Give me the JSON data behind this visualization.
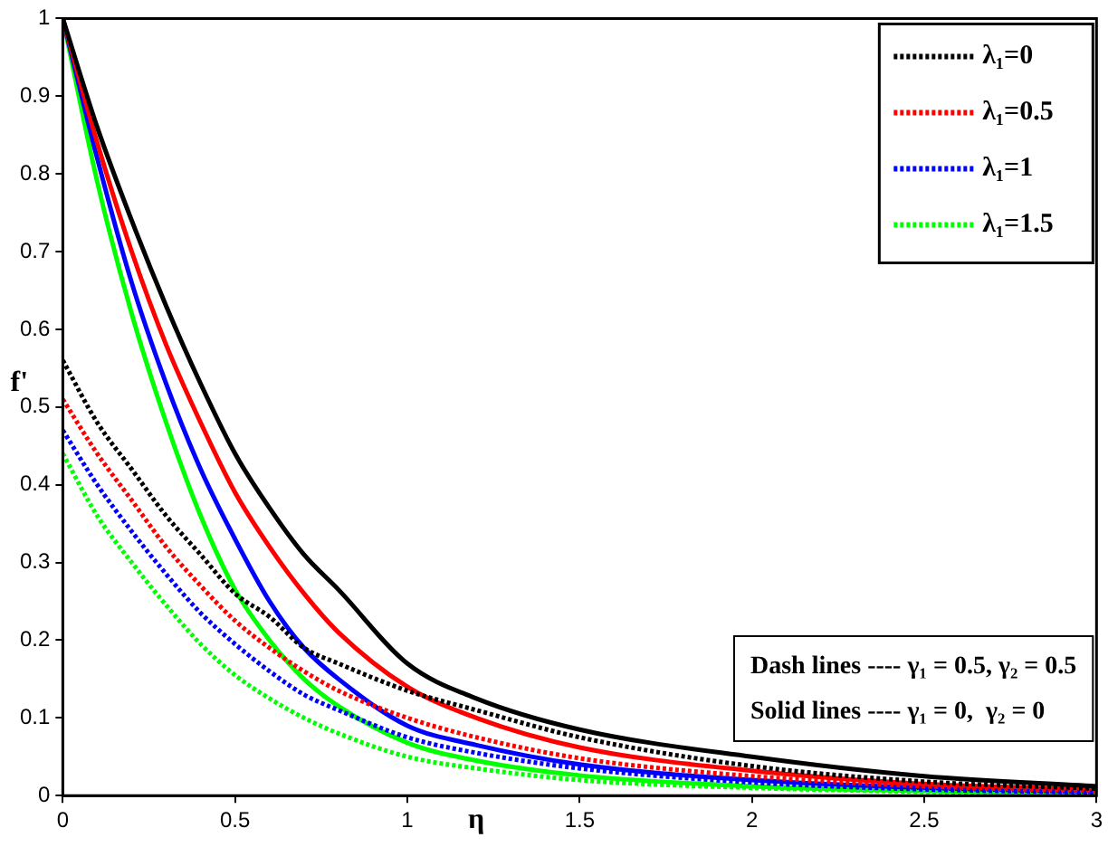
{
  "chart_data": {
    "type": "line",
    "xlabel": "η",
    "ylabel": "f'",
    "x": [
      0,
      0.1,
      0.2,
      0.3,
      0.4,
      0.5,
      0.6,
      0.7,
      0.8,
      1,
      1.2,
      1.5,
      2,
      2.5,
      3
    ],
    "series": [
      {
        "name": "λ₁=0",
        "color": "#000000",
        "line_style": "dotted",
        "values": [
          0.56,
          0.48,
          0.42,
          0.36,
          0.31,
          0.26,
          0.23,
          0.19,
          0.17,
          0.135,
          0.11,
          0.075,
          0.038,
          0.018,
          0.009
        ]
      },
      {
        "name": "λ₁=0.5",
        "color": "#ff0000",
        "line_style": "dotted",
        "values": [
          0.51,
          0.44,
          0.38,
          0.32,
          0.27,
          0.225,
          0.19,
          0.16,
          0.135,
          0.1,
          0.075,
          0.048,
          0.025,
          0.012,
          0.006
        ]
      },
      {
        "name": "λ₁=1",
        "color": "#0000ff",
        "line_style": "dotted",
        "values": [
          0.47,
          0.4,
          0.34,
          0.285,
          0.235,
          0.195,
          0.16,
          0.13,
          0.11,
          0.075,
          0.055,
          0.035,
          0.017,
          0.008,
          0.004
        ]
      },
      {
        "name": "λ₁=1.5",
        "color": "#00ff00",
        "line_style": "dotted",
        "values": [
          0.44,
          0.36,
          0.3,
          0.245,
          0.195,
          0.155,
          0.125,
          0.1,
          0.08,
          0.05,
          0.035,
          0.02,
          0.01,
          0.005,
          0.002
        ]
      },
      {
        "color": "#000000",
        "line_style": "solid",
        "values": [
          1,
          0.86,
          0.74,
          0.63,
          0.53,
          0.44,
          0.37,
          0.31,
          0.265,
          0.17,
          0.125,
          0.085,
          0.05,
          0.025,
          0.012
        ]
      },
      {
        "color": "#ff0000",
        "line_style": "solid",
        "values": [
          1,
          0.84,
          0.7,
          0.58,
          0.48,
          0.39,
          0.32,
          0.26,
          0.21,
          0.14,
          0.1,
          0.062,
          0.032,
          0.015,
          0.008
        ]
      },
      {
        "color": "#0000ff",
        "line_style": "solid",
        "values": [
          1,
          0.82,
          0.66,
          0.53,
          0.42,
          0.33,
          0.25,
          0.19,
          0.15,
          0.09,
          0.065,
          0.04,
          0.02,
          0.01,
          0.005
        ]
      },
      {
        "color": "#00ff00",
        "line_style": "solid",
        "values": [
          1,
          0.79,
          0.62,
          0.48,
          0.36,
          0.265,
          0.2,
          0.15,
          0.115,
          0.068,
          0.045,
          0.026,
          0.012,
          0.006,
          0.003
        ]
      }
    ],
    "xlim": [
      0,
      3
    ],
    "xticks": [
      0,
      0.5,
      1,
      1.5,
      2,
      2.5,
      3
    ],
    "ylim": [
      0,
      1
    ],
    "yticks": [
      0,
      0.1,
      0.2,
      0.3,
      0.4,
      0.5,
      0.6,
      0.7,
      0.8,
      0.9,
      1
    ],
    "grid": false,
    "legend": "top right",
    "marker": "none",
    "annotations": [
      "Dash lines ---- γ₁ = 0.5, γ₂ = 0.5",
      "Solid lines ---- γ₁ = 0,  γ₂ = 0"
    ]
  }
}
